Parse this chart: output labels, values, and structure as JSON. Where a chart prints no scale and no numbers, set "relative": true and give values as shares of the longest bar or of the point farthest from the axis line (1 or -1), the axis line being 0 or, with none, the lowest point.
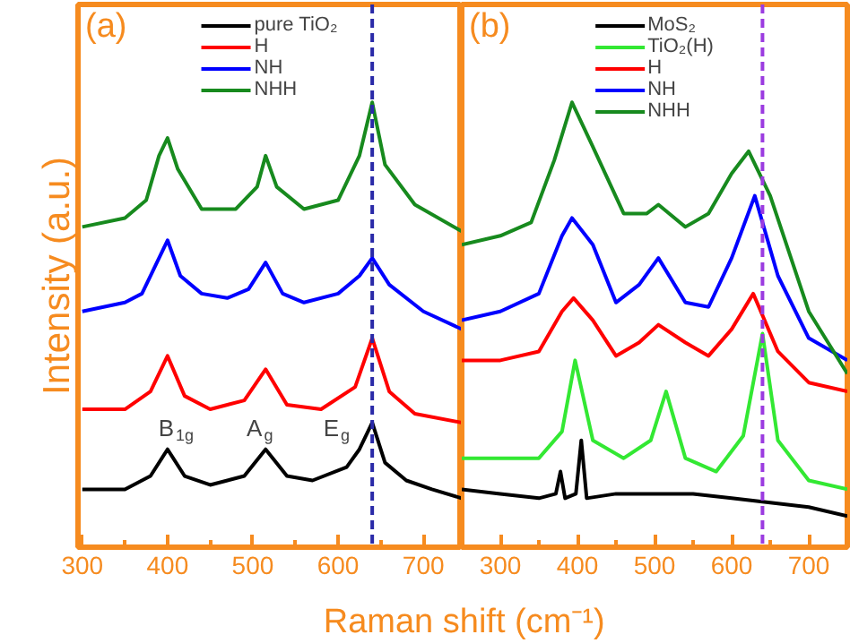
{
  "chart_data": [
    {
      "type": "line",
      "title": "(a)",
      "ylabel": "Intensity (a.u.)",
      "xlabel": "Raman shift (cm⁻¹)",
      "relative": true,
      "legend": "top",
      "xlim": [
        295,
        745
      ],
      "xticks": [
        300,
        {
          "value": 350,
          "label": null
        },
        400,
        {
          "value": 450,
          "label": null
        },
        500,
        {
          "value": 550,
          "label": null
        },
        600,
        {
          "value": 650,
          "label": null
        },
        700
      ],
      "series": [
        {
          "name": "pure TiO₂",
          "color": "#000000",
          "x": [
            300,
            350,
            380,
            400,
            420,
            450,
            490,
            515,
            540,
            570,
            610,
            625,
            640,
            655,
            680,
            710,
            745
          ],
          "values": [
            0.13,
            0.13,
            0.16,
            0.22,
            0.16,
            0.14,
            0.16,
            0.22,
            0.16,
            0.15,
            0.18,
            0.22,
            0.28,
            0.19,
            0.15,
            0.13,
            0.11
          ]
        },
        {
          "name": "H",
          "color": "#ff0000",
          "x": [
            300,
            350,
            380,
            400,
            420,
            450,
            490,
            515,
            540,
            580,
            620,
            640,
            660,
            690,
            745
          ],
          "values": [
            0.31,
            0.31,
            0.35,
            0.43,
            0.34,
            0.31,
            0.33,
            0.4,
            0.32,
            0.31,
            0.36,
            0.47,
            0.35,
            0.3,
            0.28
          ]
        },
        {
          "name": "NH",
          "color": "#0000ff",
          "x": [
            300,
            350,
            370,
            385,
            400,
            415,
            440,
            470,
            495,
            515,
            535,
            560,
            600,
            625,
            640,
            660,
            700,
            745
          ],
          "values": [
            0.53,
            0.55,
            0.57,
            0.63,
            0.69,
            0.61,
            0.57,
            0.56,
            0.58,
            0.64,
            0.57,
            0.55,
            0.57,
            0.61,
            0.65,
            0.59,
            0.53,
            0.49
          ]
        },
        {
          "name": "NHH",
          "color": "#178a1e",
          "x": [
            300,
            350,
            375,
            390,
            400,
            412,
            440,
            480,
            505,
            515,
            528,
            560,
            600,
            625,
            640,
            655,
            690,
            745
          ],
          "values": [
            0.72,
            0.74,
            0.78,
            0.88,
            0.92,
            0.85,
            0.76,
            0.76,
            0.81,
            0.88,
            0.81,
            0.76,
            0.78,
            0.88,
            1.0,
            0.86,
            0.77,
            0.71
          ]
        }
      ],
      "ref_lines": [
        {
          "axis": "x",
          "value": 640,
          "color": "#2a2aa8",
          "line_style": "dashed"
        }
      ],
      "annotations": [
        "B$_{1g}$",
        "A$_{g}$",
        "E$_{g}$"
      ]
    },
    {
      "type": "line",
      "title": "(b)",
      "relative": true,
      "legend": "top",
      "xlim": [
        250,
        750
      ],
      "xticks": [
        300,
        {
          "value": 350,
          "label": null
        },
        400,
        {
          "value": 450,
          "label": null
        },
        500,
        {
          "value": 550,
          "label": null
        },
        600,
        {
          "value": 650,
          "label": null
        },
        700
      ],
      "series": [
        {
          "name": "MoS₂",
          "color": "#000000",
          "x": [
            250,
            300,
            350,
            372,
            378,
            384,
            398,
            405,
            412,
            450,
            500,
            550,
            600,
            650,
            700,
            750
          ],
          "values": [
            0.13,
            0.12,
            0.11,
            0.12,
            0.17,
            0.11,
            0.12,
            0.24,
            0.11,
            0.12,
            0.12,
            0.12,
            0.11,
            0.1,
            0.09,
            0.07
          ]
        },
        {
          "name": "TiO₂(H)",
          "color": "#33e833",
          "x": [
            250,
            300,
            350,
            380,
            397,
            420,
            460,
            495,
            515,
            540,
            580,
            615,
            640,
            660,
            700,
            750
          ],
          "values": [
            0.2,
            0.2,
            0.2,
            0.26,
            0.42,
            0.24,
            0.2,
            0.24,
            0.35,
            0.2,
            0.17,
            0.25,
            0.48,
            0.24,
            0.15,
            0.13
          ]
        },
        {
          "name": "H",
          "color": "#ff0000",
          "x": [
            250,
            300,
            350,
            380,
            395,
            420,
            450,
            480,
            505,
            540,
            570,
            600,
            628,
            660,
            700,
            750
          ],
          "values": [
            0.42,
            0.42,
            0.44,
            0.53,
            0.56,
            0.51,
            0.43,
            0.46,
            0.5,
            0.46,
            0.43,
            0.49,
            0.57,
            0.44,
            0.37,
            0.35
          ]
        },
        {
          "name": "NH",
          "color": "#0000ff",
          "x": [
            250,
            300,
            350,
            380,
            393,
            420,
            450,
            480,
            505,
            540,
            570,
            600,
            630,
            660,
            700,
            750
          ],
          "values": [
            0.51,
            0.53,
            0.57,
            0.7,
            0.74,
            0.68,
            0.55,
            0.59,
            0.65,
            0.55,
            0.54,
            0.65,
            0.79,
            0.61,
            0.47,
            0.42
          ]
        },
        {
          "name": "NHH",
          "color": "#178a1e",
          "x": [
            250,
            300,
            340,
            370,
            393,
            420,
            460,
            490,
            505,
            540,
            570,
            600,
            622,
            650,
            700,
            750
          ],
          "values": [
            0.68,
            0.7,
            0.73,
            0.87,
            1.0,
            0.9,
            0.75,
            0.75,
            0.77,
            0.72,
            0.75,
            0.84,
            0.89,
            0.79,
            0.53,
            0.39
          ]
        }
      ],
      "ref_lines": [
        {
          "axis": "x",
          "value": 640,
          "color": "#9b3be0",
          "line_style": "dashed"
        }
      ]
    }
  ]
}
